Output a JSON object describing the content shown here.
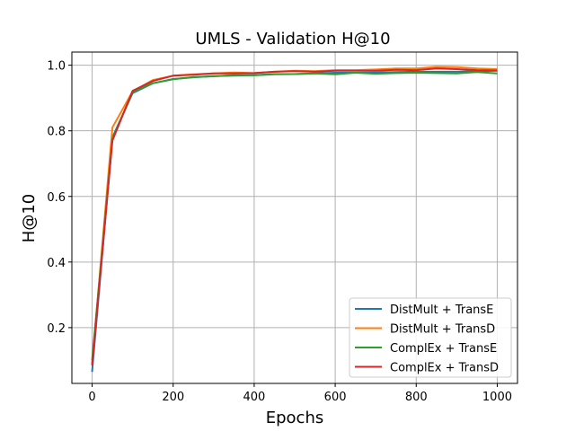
{
  "chart_data": {
    "type": "line",
    "title": "UMLS - Validation H@10",
    "xlabel": "Epochs",
    "ylabel": "H@10",
    "xlim": [
      -50,
      1050
    ],
    "ylim": [
      0.03,
      1.04
    ],
    "xticks": [
      0,
      200,
      400,
      600,
      800,
      1000
    ],
    "yticks": [
      0.2,
      0.4,
      0.6,
      0.8,
      1.0
    ],
    "grid": true,
    "legend_position": "lower-right",
    "x": [
      0,
      50,
      100,
      150,
      200,
      250,
      300,
      350,
      400,
      450,
      500,
      550,
      600,
      650,
      700,
      750,
      800,
      850,
      900,
      950,
      1000
    ],
    "series": [
      {
        "name": "DistMult + TransE",
        "color": "#1f77b4",
        "values": [
          0.065,
          0.78,
          0.915,
          0.945,
          0.958,
          0.963,
          0.967,
          0.968,
          0.97,
          0.973,
          0.973,
          0.975,
          0.977,
          0.977,
          0.978,
          0.979,
          0.98,
          0.98,
          0.98,
          0.982,
          0.983
        ]
      },
      {
        "name": "DistMult + TransD",
        "color": "#ff7f0e",
        "values": [
          0.09,
          0.81,
          0.92,
          0.955,
          0.968,
          0.972,
          0.975,
          0.978,
          0.976,
          0.98,
          0.983,
          0.982,
          0.985,
          0.985,
          0.987,
          0.99,
          0.99,
          0.995,
          0.994,
          0.99,
          0.988
        ]
      },
      {
        "name": "ComplEx + TransE",
        "color": "#2ca02c",
        "values": [
          0.1,
          0.775,
          0.918,
          0.945,
          0.957,
          0.964,
          0.966,
          0.97,
          0.969,
          0.972,
          0.973,
          0.975,
          0.972,
          0.977,
          0.974,
          0.976,
          0.977,
          0.976,
          0.975,
          0.979,
          0.975
        ]
      },
      {
        "name": "ComplEx + TransD",
        "color": "#d62728",
        "values": [
          0.085,
          0.77,
          0.922,
          0.952,
          0.968,
          0.971,
          0.975,
          0.975,
          0.976,
          0.98,
          0.982,
          0.98,
          0.983,
          0.983,
          0.983,
          0.986,
          0.985,
          0.99,
          0.988,
          0.985,
          0.984
        ]
      }
    ]
  }
}
